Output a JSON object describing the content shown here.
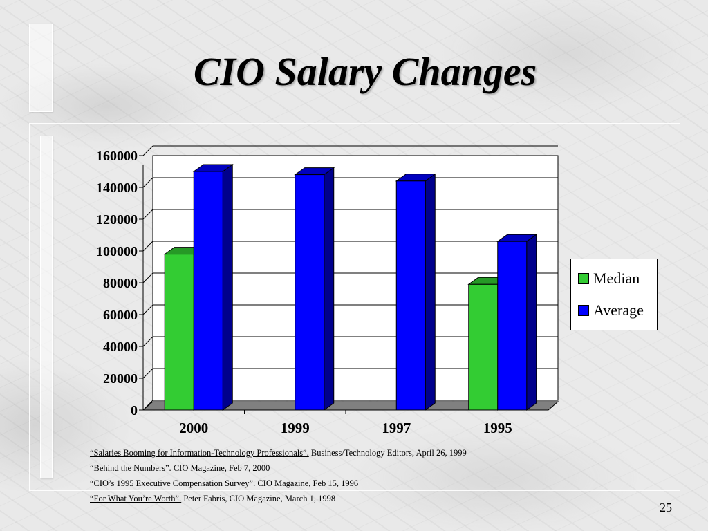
{
  "slide": {
    "title": "CIO Salary Changes",
    "page_number": "25"
  },
  "legend": {
    "items": [
      {
        "label": "Median",
        "color": "#33cc33"
      },
      {
        "label": "Average",
        "color": "#0000ff"
      }
    ]
  },
  "references": [
    {
      "link": "“Salaries Booming for Information-Technology Professionals”.",
      "rest": " Business/Technology Editors, April 26, 1999"
    },
    {
      "link": "“Behind the Numbers”.",
      "rest": "  CIO Magazine, Feb 7, 2000"
    },
    {
      "link": "“CIO’s 1995 Executive Compensation Survey”.",
      "rest": "  CIO Magazine, Feb 15, 1996"
    },
    {
      "link": "“For What You’re Worth”.",
      "rest": "  Peter Fabris, CIO Magazine, March 1, 1998"
    }
  ],
  "chart_data": {
    "type": "bar",
    "categories": [
      "2000",
      "1999",
      "1997",
      "1995"
    ],
    "series": [
      {
        "name": "Median",
        "color": "#33cc33",
        "values": [
          98000,
          null,
          null,
          79000
        ]
      },
      {
        "name": "Average",
        "color": "#0000ff",
        "values": [
          150000,
          148000,
          144000,
          106000
        ]
      }
    ],
    "ylim": [
      0,
      160000
    ],
    "yticks": [
      "0",
      "20000",
      "40000",
      "60000",
      "80000",
      "100000",
      "120000",
      "140000",
      "160000"
    ],
    "grid": true,
    "legend_position": "right",
    "three_d": true
  }
}
